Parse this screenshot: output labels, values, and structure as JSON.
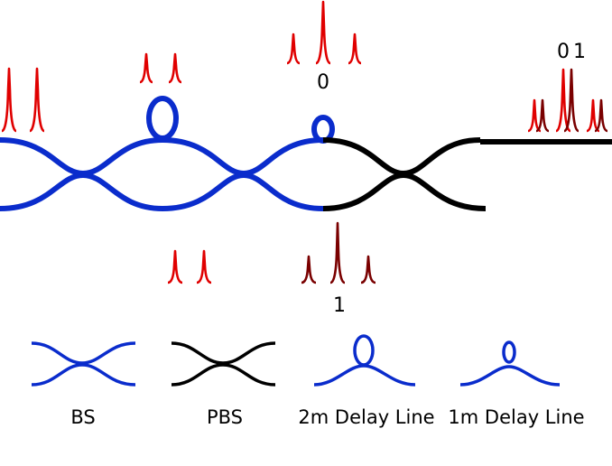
{
  "colors": {
    "bs": "#0a2ccc",
    "pbs": "#000000",
    "pulse_red": "#e00000",
    "pulse_dark": "#7a0000"
  },
  "labels": {
    "output_top": "0",
    "output_bottom": "1",
    "output_right_0": "0",
    "output_right_1": "1"
  },
  "legend": {
    "bs": "BS",
    "pbs": "PBS",
    "delay_2m": "2m Delay Line",
    "delay_1m": "1m Delay Line"
  }
}
